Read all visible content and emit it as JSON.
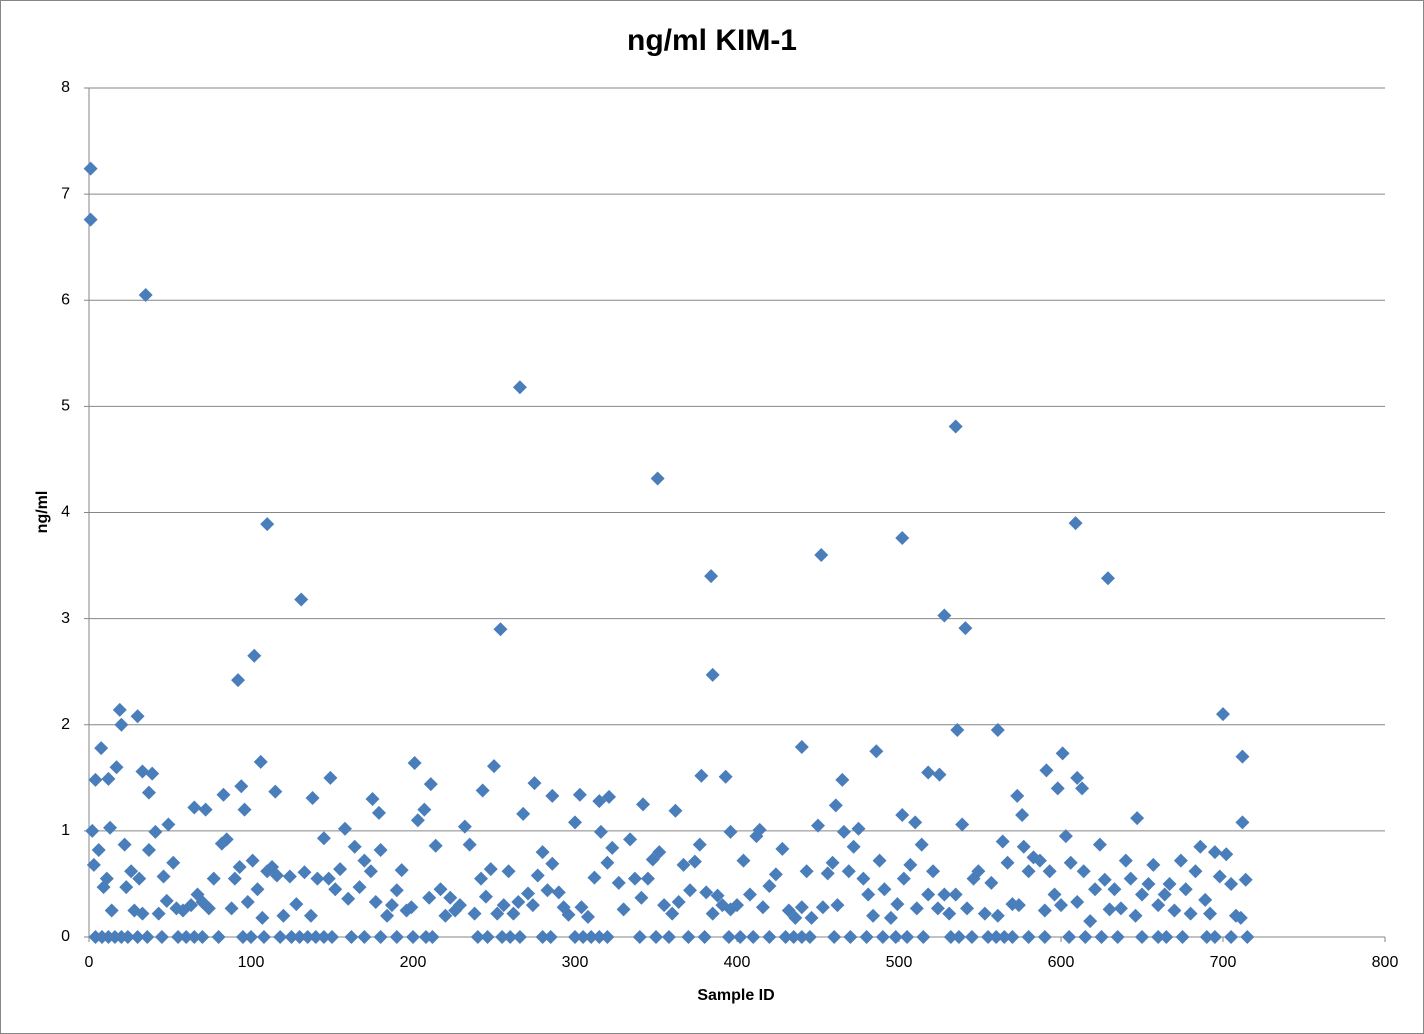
{
  "chart_data": {
    "type": "scatter",
    "title": "ng/ml KIM-1",
    "x_label": "Sample ID",
    "y_label": "ng/ml",
    "color": "#4a7ebb",
    "marker": "diamond",
    "grid": true,
    "xlim": [
      0,
      800
    ],
    "xticks": [
      0,
      100,
      200,
      300,
      400,
      500,
      600,
      700,
      800
    ],
    "ylim": [
      0,
      8
    ],
    "yticks": [
      0,
      1,
      2,
      3,
      4,
      5,
      6,
      7,
      8
    ],
    "x": [
      1,
      1,
      35,
      110,
      131,
      92,
      102,
      266,
      254,
      351,
      384,
      385,
      452,
      502,
      535,
      528,
      541,
      609,
      629,
      700,
      712,
      19,
      20,
      30,
      7.5,
      17,
      33,
      39,
      37,
      4,
      12,
      106,
      115,
      94,
      96,
      201,
      211,
      250,
      243,
      275,
      149,
      138,
      175,
      179,
      342,
      362,
      378,
      393,
      396,
      414,
      440,
      465,
      461,
      486,
      518,
      525,
      536,
      561,
      573,
      576,
      591,
      601,
      598,
      610,
      613,
      647,
      712,
      502,
      510,
      303,
      286,
      321,
      315,
      49,
      13,
      2,
      72,
      65,
      83,
      4,
      8,
      12,
      16,
      20,
      24,
      30,
      36,
      45,
      55,
      60,
      65,
      70,
      80,
      95,
      100,
      108,
      118,
      125,
      130,
      135,
      140,
      145,
      150,
      162,
      170,
      180,
      190,
      200,
      208,
      212,
      240,
      246,
      255,
      260,
      266,
      280,
      285,
      300,
      305,
      310,
      315,
      320,
      340,
      350,
      358,
      370,
      380,
      395,
      402,
      410,
      420,
      430,
      435,
      440,
      445,
      460,
      470,
      480,
      490,
      498,
      505,
      515,
      532,
      537,
      545,
      555,
      560,
      565,
      570,
      580,
      590,
      605,
      615,
      625,
      635,
      650,
      660,
      665,
      675,
      690,
      695,
      705,
      715,
      3,
      6,
      9,
      11,
      14,
      22,
      23,
      26,
      28,
      31,
      33,
      37,
      41,
      43,
      46,
      48,
      52,
      54,
      58,
      63,
      67,
      70,
      74,
      77,
      82,
      85,
      88,
      90,
      93,
      98,
      101,
      104,
      107,
      110,
      113,
      116,
      120,
      124,
      128,
      133,
      137,
      141,
      145,
      148,
      152,
      155,
      158,
      160,
      164,
      167,
      170,
      174,
      177,
      180,
      184,
      187,
      190,
      193,
      196,
      199,
      203,
      207,
      210,
      214,
      217,
      220,
      223,
      226,
      229,
      232,
      235,
      238,
      242,
      245,
      248,
      252,
      256,
      259,
      262,
      265,
      268,
      271,
      274,
      277,
      280,
      283,
      286,
      290,
      293,
      296,
      300,
      304,
      308,
      312,
      316,
      320,
      323,
      327,
      330,
      334,
      337,
      341,
      345,
      348,
      352,
      355,
      360,
      364,
      367,
      371,
      374,
      377,
      381,
      385,
      388,
      391,
      396,
      400,
      404,
      408,
      412,
      416,
      420,
      424,
      428,
      432,
      436,
      440,
      443,
      446,
      450,
      453,
      456,
      459,
      462,
      466,
      469,
      472,
      475,
      478,
      481,
      484,
      488,
      491,
      495,
      499,
      503,
      507,
      511,
      514,
      518,
      521,
      524,
      528,
      531,
      535,
      539,
      542,
      546,
      549,
      553,
      557,
      561,
      564,
      567,
      570,
      574,
      577,
      580,
      583,
      587,
      590,
      593,
      596,
      600,
      603,
      606,
      610,
      614,
      618,
      621,
      624,
      627,
      630,
      633,
      637,
      640,
      643,
      646,
      650,
      654,
      657,
      660,
      664,
      667,
      670,
      674,
      677,
      680,
      683,
      686,
      689,
      692,
      695,
      698,
      702,
      705,
      708,
      711,
      714
    ],
    "values": [
      7.24,
      6.76,
      6.05,
      3.89,
      3.18,
      2.42,
      2.65,
      5.18,
      2.9,
      4.32,
      3.4,
      2.47,
      3.6,
      3.76,
      4.81,
      3.03,
      2.91,
      3.9,
      3.38,
      2.1,
      1.7,
      2.14,
      2.0,
      2.08,
      1.78,
      1.6,
      1.56,
      1.54,
      1.36,
      1.48,
      1.49,
      1.65,
      1.37,
      1.42,
      1.2,
      1.64,
      1.44,
      1.61,
      1.38,
      1.45,
      1.5,
      1.31,
      1.3,
      1.17,
      1.25,
      1.19,
      1.52,
      1.51,
      0.99,
      1.01,
      1.79,
      1.48,
      1.24,
      1.75,
      1.55,
      1.53,
      1.95,
      1.95,
      1.33,
      1.15,
      1.57,
      1.73,
      1.4,
      1.5,
      1.4,
      1.12,
      1.08,
      1.15,
      1.08,
      1.34,
      1.33,
      1.32,
      1.28,
      1.06,
      1.03,
      1.0,
      1.2,
      1.22,
      1.34,
      0,
      0,
      0,
      0,
      0,
      0,
      0,
      0,
      0,
      0,
      0,
      0,
      0,
      0,
      0,
      0,
      0,
      0,
      0,
      0,
      0,
      0,
      0,
      0,
      0,
      0,
      0,
      0,
      0,
      0,
      0,
      0,
      0,
      0,
      0,
      0,
      0,
      0,
      0,
      0,
      0,
      0,
      0,
      0,
      0,
      0,
      0,
      0,
      0,
      0,
      0,
      0,
      0,
      0,
      0,
      0,
      0,
      0,
      0,
      0,
      0,
      0,
      0,
      0,
      0,
      0,
      0,
      0,
      0,
      0,
      0,
      0,
      0,
      0,
      0,
      0,
      0,
      0,
      0,
      0,
      0,
      0,
      0,
      0,
      0.68,
      0.82,
      0.47,
      0.55,
      0.25,
      0.87,
      0.47,
      0.62,
      0.25,
      0.55,
      0.22,
      0.82,
      0.99,
      0.22,
      0.57,
      0.34,
      0.7,
      0.27,
      0.25,
      0.3,
      0.4,
      0.33,
      0.27,
      0.55,
      0.88,
      0.92,
      0.27,
      0.55,
      0.66,
      0.33,
      0.72,
      0.45,
      0.18,
      0.62,
      0.66,
      0.58,
      0.2,
      0.57,
      0.31,
      0.61,
      0.2,
      0.55,
      0.93,
      0.55,
      0.45,
      0.64,
      1.02,
      0.36,
      0.85,
      0.47,
      0.72,
      0.62,
      0.33,
      0.82,
      0.2,
      0.3,
      0.44,
      0.63,
      0.25,
      0.28,
      1.1,
      1.2,
      0.37,
      0.86,
      0.45,
      0.2,
      0.37,
      0.25,
      0.3,
      1.04,
      0.87,
      0.22,
      0.55,
      0.38,
      0.64,
      0.22,
      0.3,
      0.62,
      0.22,
      0.33,
      1.16,
      0.41,
      0.3,
      0.58,
      0.8,
      0.44,
      0.69,
      0.42,
      0.28,
      0.21,
      1.08,
      0.28,
      0.19,
      0.56,
      0.99,
      0.7,
      0.84,
      0.51,
      0.26,
      0.92,
      0.55,
      0.37,
      0.55,
      0.73,
      0.8,
      0.3,
      0.22,
      0.33,
      0.68,
      0.44,
      0.71,
      0.87,
      0.42,
      0.22,
      0.39,
      0.3,
      0.26,
      0.3,
      0.72,
      0.4,
      0.95,
      0.28,
      0.48,
      0.59,
      0.83,
      0.25,
      0.18,
      0.28,
      0.62,
      0.18,
      1.05,
      0.28,
      0.6,
      0.7,
      0.3,
      0.99,
      0.62,
      0.85,
      1.02,
      0.55,
      0.4,
      0.2,
      0.72,
      0.45,
      0.18,
      0.31,
      0.55,
      0.68,
      0.27,
      0.87,
      0.4,
      0.62,
      0.27,
      0.4,
      0.22,
      0.4,
      1.06,
      0.27,
      0.55,
      0.62,
      0.22,
      0.51,
      0.2,
      0.9,
      0.7,
      0.31,
      0.3,
      0.85,
      0.62,
      0.75,
      0.72,
      0.25,
      0.62,
      0.4,
      0.3,
      0.95,
      0.7,
      0.33,
      0.62,
      0.15,
      0.45,
      0.87,
      0.54,
      0.26,
      0.45,
      0.27,
      0.72,
      0.55,
      0.2,
      0.4,
      0.5,
      0.68,
      0.3,
      0.4,
      0.5,
      0.25,
      0.72,
      0.45,
      0.22,
      0.62,
      0.85,
      0.35,
      0.22,
      0.8,
      0.57,
      0.78,
      0.5,
      0.2,
      0.18,
      0.54
    ]
  }
}
